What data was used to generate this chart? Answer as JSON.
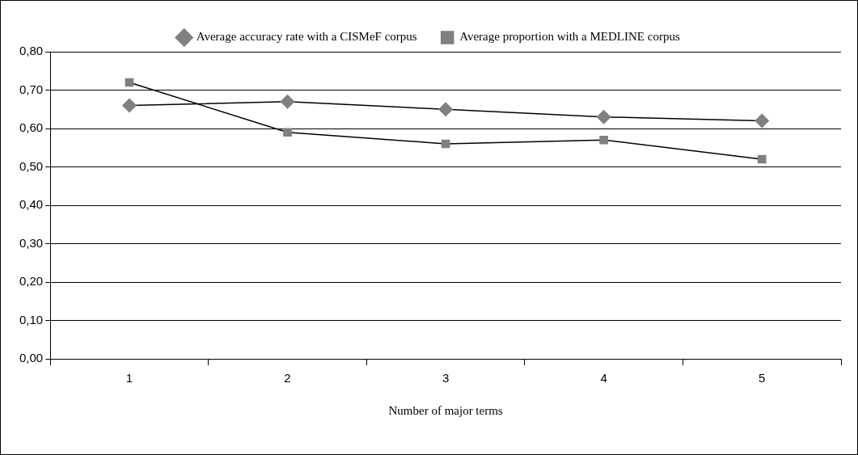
{
  "chart_data": {
    "type": "line",
    "categories": [
      "1",
      "2",
      "3",
      "4",
      "5"
    ],
    "series": [
      {
        "name": "Average accuracy rate with a CISMeF corpus",
        "color": "#808080",
        "marker": "diamond",
        "values": [
          0.66,
          0.67,
          0.65,
          0.63,
          0.62
        ]
      },
      {
        "name": "Average proportion with a MEDLINE corpus",
        "color": "#808080",
        "marker": "square",
        "values": [
          0.72,
          0.59,
          0.56,
          0.57,
          0.52
        ]
      }
    ],
    "xlabel": "Number of major terms",
    "ylim": [
      0,
      0.8
    ],
    "yticks": [
      {
        "value": 0,
        "label": "0,00"
      },
      {
        "value": 0.1,
        "label": "0,10"
      },
      {
        "value": 0.2,
        "label": "0,20"
      },
      {
        "value": 0.3,
        "label": "0,30"
      },
      {
        "value": 0.4,
        "label": "0,40"
      },
      {
        "value": 0.5,
        "label": "0,50"
      },
      {
        "value": 0.6,
        "label": "0,60"
      },
      {
        "value": 0.7,
        "label": "0,70"
      },
      {
        "value": 0.8,
        "label": "0,80"
      }
    ],
    "grid": "y",
    "legend": "top",
    "line_style": "solid"
  }
}
